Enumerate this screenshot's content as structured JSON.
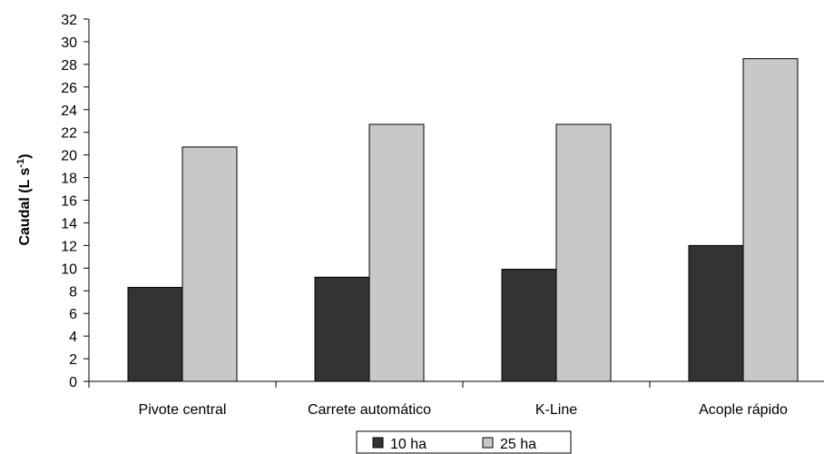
{
  "chart_data": {
    "type": "bar",
    "categories": [
      "Pivote central",
      "Carrete automático",
      "K-Line",
      "Acople rápido"
    ],
    "series": [
      {
        "name": "10 ha",
        "values": [
          8.3,
          9.2,
          9.9,
          12.0
        ],
        "color": "#333333"
      },
      {
        "name": "25 ha",
        "values": [
          20.7,
          22.7,
          22.7,
          28.5
        ],
        "color": "#c8c8c8"
      }
    ],
    "ylabel": "Caudal (L s",
    "ylabel_sup": "-1",
    "ylabel_close": ")",
    "ylim": [
      0,
      32
    ],
    "yticks": [
      "0",
      "2",
      "4",
      "6",
      "8",
      "10",
      "12",
      "14",
      "16",
      "18",
      "20",
      "22",
      "24",
      "26",
      "28",
      "30",
      "32"
    ],
    "grid": false,
    "legend_position": "bottom-center"
  }
}
